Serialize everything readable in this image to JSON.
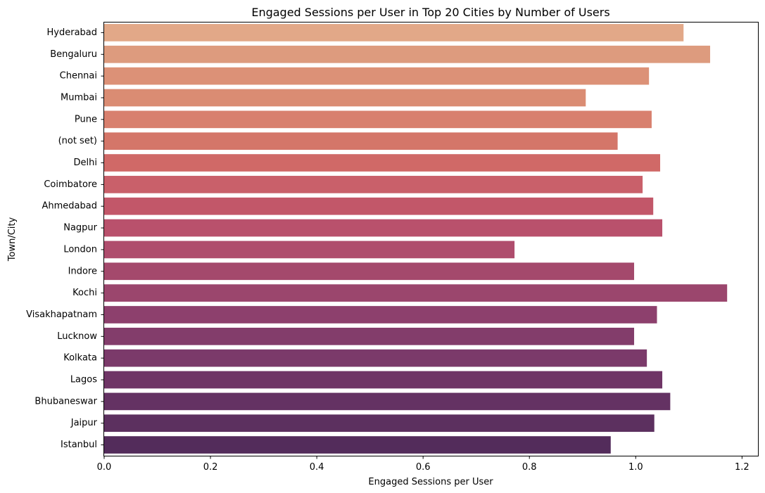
{
  "chart_data": {
    "type": "bar",
    "orientation": "horizontal",
    "title": "Engaged Sessions per User in Top 20 Cities by Number of Users",
    "xlabel": "Engaged Sessions per User",
    "ylabel": "Town/City",
    "xlim": [
      0,
      1.23
    ],
    "xticks": [
      0.0,
      0.2,
      0.4,
      0.6,
      0.8,
      1.0,
      1.2
    ],
    "xtick_labels": [
      "0.0",
      "0.2",
      "0.4",
      "0.6",
      "0.8",
      "1.0",
      "1.2"
    ],
    "grid": false,
    "legend": "none",
    "colors": [
      "#e2a888",
      "#dd9b7e",
      "#dc9177",
      "#da8c73",
      "#d8806e",
      "#d47669",
      "#d06967",
      "#c9606a",
      "#c25769",
      "#b9516c",
      "#af4d6d",
      "#a4496c",
      "#9b466d",
      "#8d406d",
      "#833d6b",
      "#7b3a6a",
      "#6f3566",
      "#643263",
      "#5c305f",
      "#532c5b"
    ],
    "categories": [
      "Hyderabad",
      "Bengaluru",
      "Chennai",
      "Mumbai",
      "Pune",
      "(not set)",
      "Delhi",
      "Coimbatore",
      "Ahmedabad",
      "Nagpur",
      "London",
      "Indore",
      "Kochi",
      "Visakhapatnam",
      "Lucknow",
      "Kolkata",
      "Lagos",
      "Bhubaneswar",
      "Jaipur",
      "Istanbul"
    ],
    "values": [
      1.09,
      1.14,
      1.025,
      0.906,
      1.03,
      0.966,
      1.046,
      1.013,
      1.033,
      1.05,
      0.772,
      0.997,
      1.172,
      1.04,
      0.997,
      1.021,
      1.05,
      1.065,
      1.035,
      0.953
    ]
  }
}
